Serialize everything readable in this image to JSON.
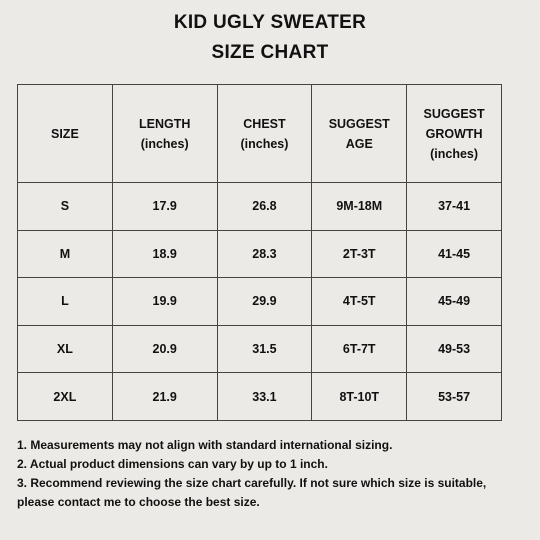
{
  "title": {
    "line1": "KID UGLY SWEATER",
    "line2": "SIZE CHART"
  },
  "table": {
    "headers": [
      [
        "SIZE"
      ],
      [
        "LENGTH",
        "(inches)"
      ],
      [
        "CHEST",
        "(inches)"
      ],
      [
        "SUGGEST",
        "AGE"
      ],
      [
        "SUGGEST",
        "GROWTH",
        "(inches)"
      ]
    ],
    "rows": [
      [
        "S",
        "17.9",
        "26.8",
        "9M-18M",
        "37-41"
      ],
      [
        "M",
        "18.9",
        "28.3",
        "2T-3T",
        "41-45"
      ],
      [
        "L",
        "19.9",
        "29.9",
        "4T-5T",
        "45-49"
      ],
      [
        "XL",
        "20.9",
        "31.5",
        "6T-7T",
        "49-53"
      ],
      [
        "2XL",
        "21.9",
        "33.1",
        "8T-10T",
        "53-57"
      ]
    ]
  },
  "notes": [
    "1. Measurements may not align with standard international sizing.",
    "2. Actual product dimensions can vary by up to 1 inch.",
    "3. Recommend reviewing the size chart carefully. If not sure which size is suitable, please contact me to choose the best size."
  ]
}
